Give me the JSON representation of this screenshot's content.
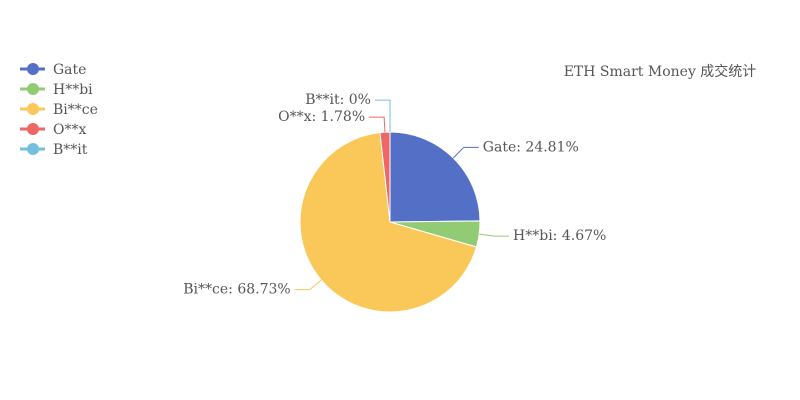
{
  "chart_data": {
    "type": "pie",
    "title": "ETH Smart Money 成交统计",
    "categories": [
      "Gate",
      "H**bi",
      "Bi**ce",
      "O**x",
      "B**it"
    ],
    "values": [
      24.81,
      4.67,
      68.73,
      1.78,
      0
    ],
    "value_labels": [
      "Gate: 24.81%",
      "H**bi: 4.67%",
      "Bi**ce: 68.73%",
      "O**x: 1.78%",
      "B**it: 0%"
    ],
    "colors": [
      "#5470c6",
      "#91cc75",
      "#fac858",
      "#ee6666",
      "#73c0de"
    ],
    "legend": "top-left"
  }
}
